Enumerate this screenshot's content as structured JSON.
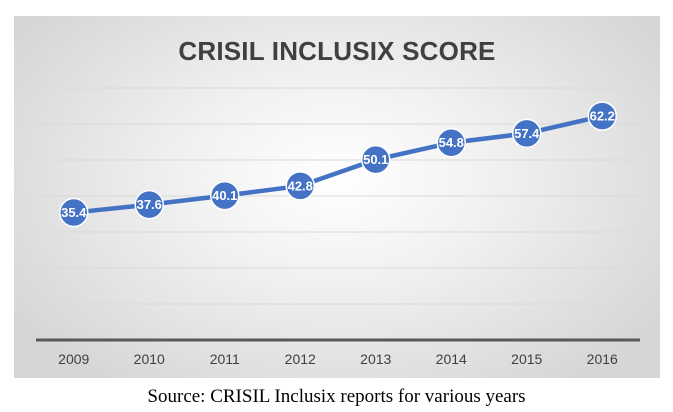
{
  "caption": "Source: CRISIL Inclusix reports for various years",
  "chart_data": {
    "type": "line",
    "title": "CRISIL INCLUSIX SCORE",
    "xlabel": "",
    "ylabel": "",
    "categories": [
      "2009",
      "2010",
      "2011",
      "2012",
      "2013",
      "2014",
      "2015",
      "2016"
    ],
    "values": [
      35.4,
      37.6,
      40.1,
      42.8,
      50.1,
      54.8,
      57.4,
      62.2
    ],
    "data_labels": [
      "35.4",
      "37.6",
      "40.1",
      "42.8",
      "50.1",
      "54.8",
      "57.4",
      "62.2"
    ],
    "ylim": [
      0,
      70
    ],
    "y_gridlines": [
      10,
      20,
      30,
      40,
      50,
      60,
      70
    ],
    "grid": true,
    "legend": "none",
    "colors": {
      "line": "#4472C4",
      "marker": "#4472C4",
      "axis": "#595959",
      "grid": "#d9d9d9"
    }
  }
}
